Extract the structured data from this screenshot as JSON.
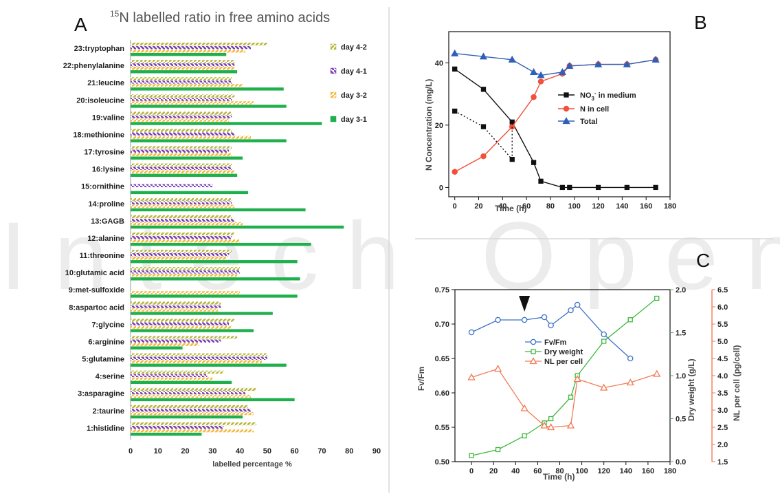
{
  "panels": {
    "a": "A",
    "b": "B",
    "c": "C"
  },
  "watermark": "Intech Open",
  "chart_data": [
    {
      "id": "A",
      "type": "bar",
      "title_sup": "15",
      "title_rest": "N labelled ratio in free amino acids",
      "xlabel": "labelled percentage %",
      "ylabel": "",
      "xlim": [
        0,
        90
      ],
      "xticks": [
        0,
        10,
        20,
        30,
        40,
        50,
        60,
        70,
        80,
        90
      ],
      "grid": false,
      "legend": "top-right",
      "categories": [
        "1:histidine",
        "2:taurine",
        "3:asparagine",
        "4:serine",
        "5:glutamine",
        "6:arginine",
        "7:glycine",
        "8:aspartoc acid",
        "9:met-sulfoxide",
        "10:glutamic acid",
        "11:threonine",
        "12:alanine",
        "13:GAGB",
        "14:proline",
        "15:ornithine",
        "16:lysine",
        "17:tyrosine",
        "18:methionine",
        "19:valine",
        "20:isoleucine",
        "21:leucine",
        "22:phenylalanine",
        "23:tryptophan"
      ],
      "series": [
        {
          "name": "day 4-2",
          "color": "#b7b83c",
          "values": [
            46,
            43,
            46,
            34,
            50,
            39,
            38,
            33,
            null,
            40,
            37,
            38,
            37,
            37,
            null,
            37,
            37,
            37,
            37,
            38,
            37,
            38,
            50
          ]
        },
        {
          "name": "day 4-1",
          "color": "#7b40b8",
          "values": [
            34,
            44,
            42,
            28,
            50,
            33,
            36,
            33,
            null,
            40,
            36,
            37,
            38,
            37,
            30,
            37,
            36,
            38,
            37,
            37,
            37,
            38,
            44
          ]
        },
        {
          "name": "day 3-2",
          "color": "#f5b93a",
          "values": [
            45,
            45,
            44,
            30,
            48,
            25,
            37,
            32,
            40,
            39,
            35,
            40,
            41,
            38,
            null,
            38,
            37,
            44,
            36,
            45,
            41,
            38,
            42
          ]
        },
        {
          "name": "day 3-1",
          "color": "#1eb04c",
          "values": [
            26,
            41,
            60,
            37,
            57,
            19,
            45,
            52,
            61,
            62,
            61,
            66,
            78,
            64,
            43,
            39,
            41,
            57,
            70,
            57,
            56,
            39,
            35
          ]
        }
      ]
    },
    {
      "id": "B",
      "type": "line",
      "xlabel": "Time (h)",
      "ylabel": "N Concentration (mg/L)",
      "xlim": [
        -5,
        180
      ],
      "ylim": [
        -3,
        50
      ],
      "xticks": [
        0,
        20,
        40,
        60,
        80,
        100,
        120,
        140,
        160,
        180
      ],
      "yticks": [
        0,
        20,
        40
      ],
      "grid": false,
      "legend": "center-right",
      "series": [
        {
          "name": "NO",
          "name_sup": "3",
          "name_super": "-",
          "name_rest": " in medium",
          "color": "#111111",
          "marker": "square",
          "x": [
            0,
            24,
            48,
            66,
            72,
            90,
            96,
            120,
            144,
            168
          ],
          "y": [
            38,
            31.5,
            21,
            8,
            2,
            0,
            0,
            0,
            0,
            0
          ]
        },
        {
          "name": "N in cell",
          "color": "#f0503c",
          "marker": "circle",
          "x": [
            0,
            24,
            48,
            66,
            72,
            90,
            96,
            120,
            144,
            168
          ],
          "y": [
            5,
            10,
            19.5,
            29,
            34,
            36.5,
            39,
            39.5,
            39.5,
            41
          ]
        },
        {
          "name": "Total",
          "color": "#2f5fb8",
          "marker": "triangle",
          "x": [
            0,
            24,
            48,
            66,
            72,
            90,
            96,
            120,
            144,
            168
          ],
          "y": [
            43,
            42,
            41,
            37,
            36,
            37,
            39,
            39.5,
            39.5,
            41
          ]
        },
        {
          "name": "",
          "color": "#111111",
          "marker": "square",
          "dotted": true,
          "x": [
            0,
            24,
            48
          ],
          "y": [
            24.5,
            19.5,
            9
          ]
        }
      ]
    },
    {
      "id": "C",
      "type": "line",
      "xlabel": "Time (h)",
      "ylabel_left": "Fv/Fm",
      "ylabel_right1": "Dry weight (g/L)",
      "ylabel_right2": "NL per cell (pg/cell)",
      "xlim": [
        -15,
        180
      ],
      "xticks": [
        0,
        20,
        40,
        60,
        80,
        100,
        120,
        140,
        160,
        180
      ],
      "ylim_left": [
        0.5,
        0.75
      ],
      "yticks_left": [
        "0.50",
        "0.55",
        "0.60",
        "0.65",
        "0.70",
        "0.75"
      ],
      "ylim_right1": [
        0,
        2
      ],
      "yticks_right1": [
        "0.0",
        "0.5",
        "1.0",
        "1.5",
        "2.0"
      ],
      "ylim_right2": [
        1.5,
        6.5
      ],
      "yticks_right2": [
        "1.5",
        "2.0",
        "2.5",
        "3.0",
        "3.5",
        "4.0",
        "4.5",
        "5.0",
        "5.5",
        "6.0",
        "6.5"
      ],
      "grid": false,
      "legend": "center",
      "arrow_x": 48,
      "series": [
        {
          "name": "Fv/Fm",
          "axis": "left",
          "color": "#3a6fc8",
          "marker": "circle",
          "x": [
            0,
            24,
            48,
            66,
            72,
            90,
            96,
            120,
            144
          ],
          "y": [
            0.688,
            0.706,
            0.706,
            0.71,
            0.698,
            0.72,
            0.728,
            0.685,
            0.65
          ]
        },
        {
          "name": "Dry weight",
          "axis": "right1",
          "color": "#3db83a",
          "marker": "square",
          "x": [
            0,
            24,
            48,
            66,
            72,
            90,
            96,
            120,
            144,
            168
          ],
          "y": [
            0.07,
            0.14,
            0.3,
            0.45,
            0.5,
            0.75,
            1.0,
            1.4,
            1.65,
            1.9
          ]
        },
        {
          "name": "NL per cell",
          "axis": "right2",
          "color": "#f37a55",
          "marker": "triangle",
          "x": [
            0,
            24,
            48,
            66,
            72,
            90,
            96,
            120,
            144,
            168
          ],
          "y": [
            3.95,
            4.2,
            3.05,
            2.55,
            2.5,
            2.55,
            3.9,
            3.65,
            3.8,
            4.05
          ]
        }
      ]
    }
  ]
}
